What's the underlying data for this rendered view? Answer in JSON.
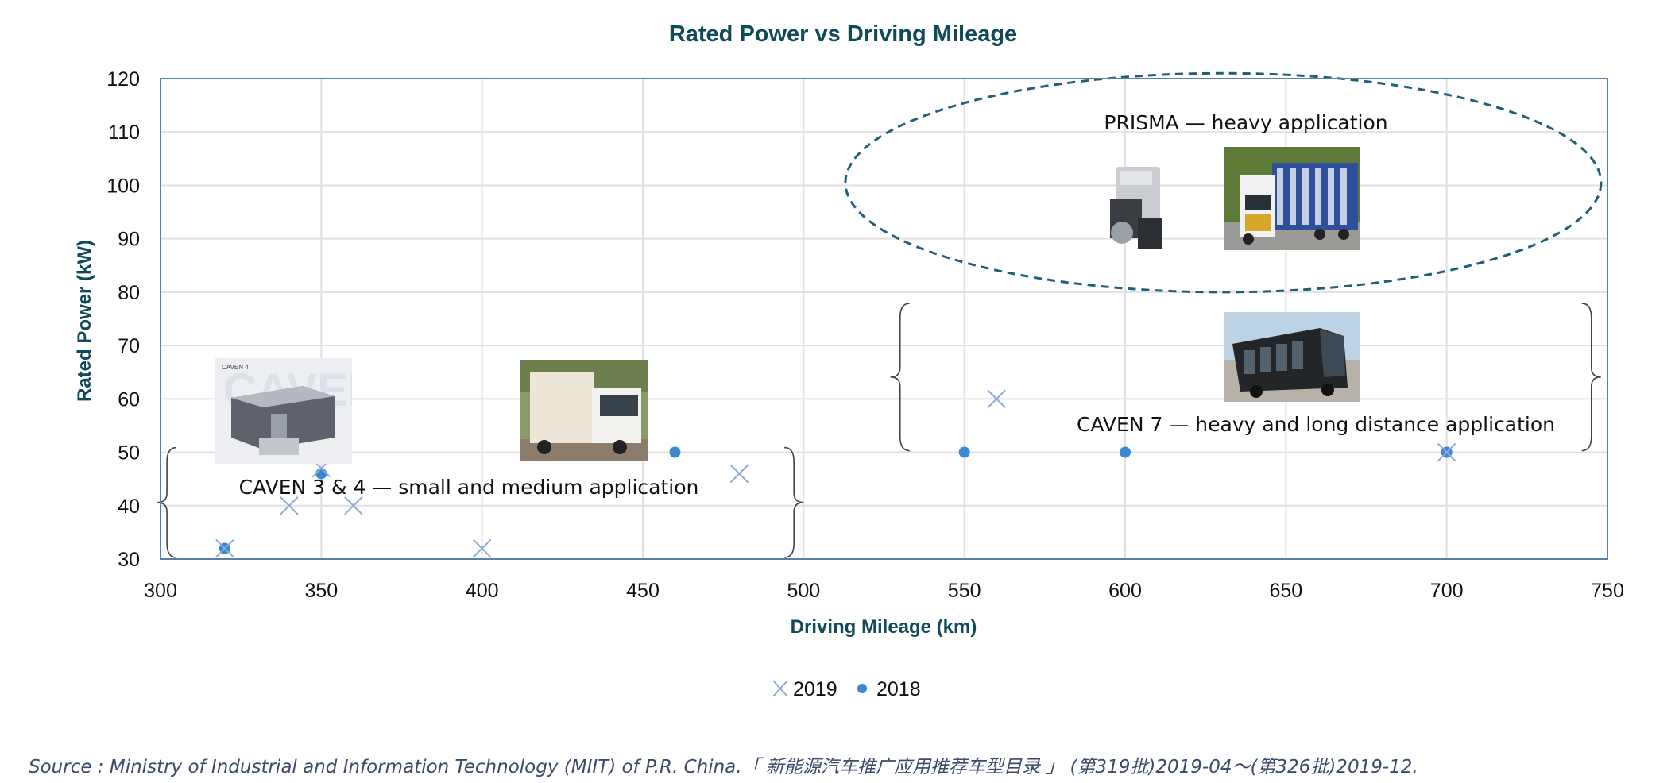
{
  "chart_data": {
    "type": "scatter",
    "title": "Rated Power vs Driving Mileage",
    "xlabel": "Driving Mileage (km)",
    "ylabel": "Rated Power (kW)",
    "xlim": [
      300,
      750
    ],
    "ylim": [
      30,
      120
    ],
    "xticks": [
      300,
      350,
      400,
      450,
      500,
      550,
      600,
      650,
      700,
      750
    ],
    "yticks": [
      30,
      40,
      50,
      60,
      70,
      80,
      90,
      100,
      110,
      120
    ],
    "grid": true,
    "legend_position": "bottom-center",
    "series": [
      {
        "name": "2019",
        "marker": "x",
        "color": "#8fa9d6",
        "points": [
          {
            "x": 320,
            "y": 32
          },
          {
            "x": 340,
            "y": 40
          },
          {
            "x": 350,
            "y": 47
          },
          {
            "x": 360,
            "y": 40
          },
          {
            "x": 400,
            "y": 32
          },
          {
            "x": 480,
            "y": 46
          },
          {
            "x": 560,
            "y": 60
          },
          {
            "x": 700,
            "y": 50
          }
        ]
      },
      {
        "name": "2018",
        "marker": "circle",
        "color": "#3b87d0",
        "points": [
          {
            "x": 320,
            "y": 32
          },
          {
            "x": 350,
            "y": 46
          },
          {
            "x": 460,
            "y": 50
          },
          {
            "x": 550,
            "y": 50
          },
          {
            "x": 600,
            "y": 50
          },
          {
            "x": 700,
            "y": 50
          }
        ]
      }
    ],
    "annotations": [
      {
        "text": "PRISMA — heavy application",
        "shape": "dashed-ellipse",
        "x_range": [
          513,
          748
        ],
        "y_range": [
          80,
          121
        ]
      },
      {
        "text": "CAVEN 7 — heavy and long distance application",
        "shape": "braces",
        "x_range": [
          530,
          745
        ],
        "y_range": [
          50,
          77
        ]
      },
      {
        "text": "CAVEN 3 & 4 — small and medium application",
        "shape": "braces",
        "x_range": [
          302,
          497
        ],
        "y_range": [
          30,
          50
        ]
      }
    ],
    "images": [
      {
        "label": "PRISMA fuel cell engine",
        "group": "PRISMA"
      },
      {
        "label": "Heavy truck",
        "group": "PRISMA"
      },
      {
        "label": "City bus",
        "group": "CAVEN 7"
      },
      {
        "label": "CAVEN 4 engine module",
        "group": "CAVEN 3 & 4"
      },
      {
        "label": "Light delivery truck",
        "group": "CAVEN 3 & 4"
      }
    ]
  },
  "colors": {
    "title": "#0e4a58",
    "axis_frame": "#5b7fa8",
    "grid": "#e0e0e0",
    "ellipse": "#1f5f7a",
    "brace": "#444444"
  },
  "source": "Source : Ministry of Industrial and Information Technology (MIIT) of  P.R. China.「 新能源汽车推广应用推荐车型目录 」 (第319批)2019-04～(第326批)2019-12."
}
